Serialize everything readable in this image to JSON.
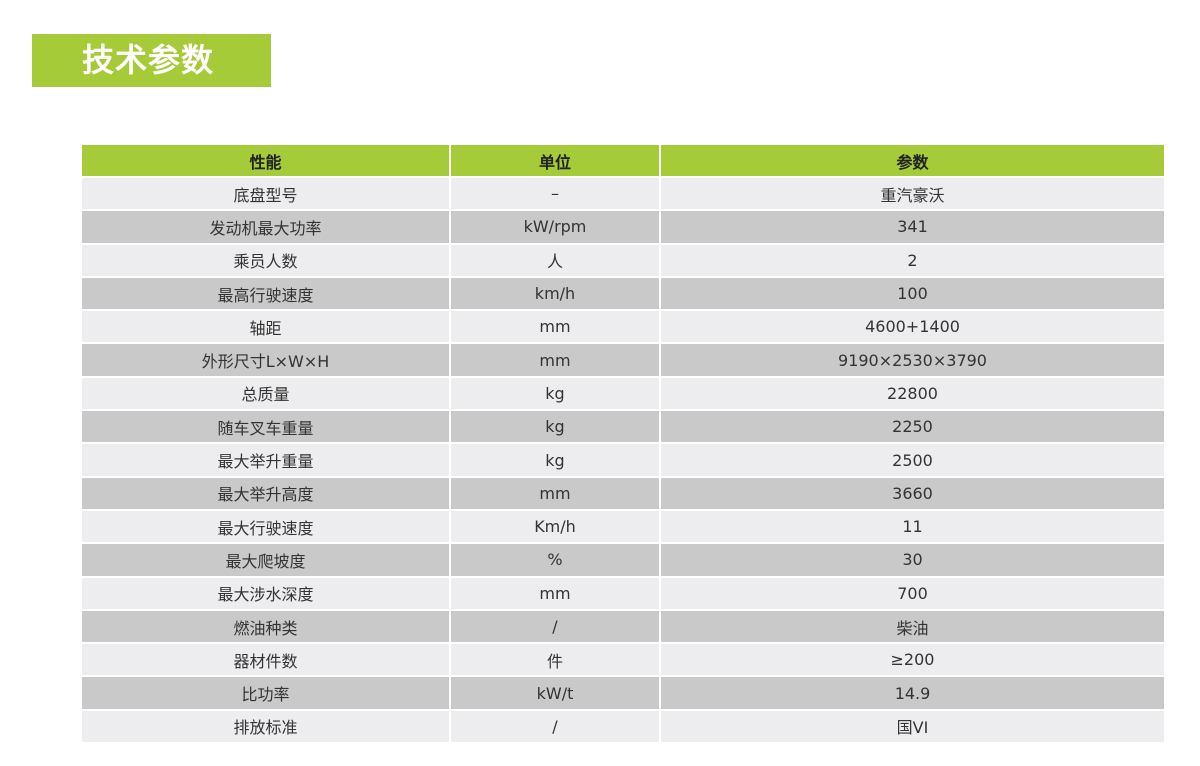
{
  "title": "技术参数",
  "colors": {
    "accent": "#a6cb38",
    "row_light": "#ededef",
    "row_dark": "#c9c9ca"
  },
  "table": {
    "headers": [
      "性能",
      "单位",
      "参数"
    ],
    "rows": [
      [
        "底盘型号",
        "–",
        "重汽豪沃"
      ],
      [
        "发动机最大功率",
        "kW/rpm",
        "341"
      ],
      [
        "乘员人数",
        "人",
        "2"
      ],
      [
        "最高行驶速度",
        "km/h",
        "100"
      ],
      [
        "轴距",
        "mm",
        "4600+1400"
      ],
      [
        "外形尺寸L×W×H",
        "mm",
        "9190×2530×3790"
      ],
      [
        "总质量",
        "kg",
        "22800"
      ],
      [
        "随车叉车重量",
        "kg",
        "2250"
      ],
      [
        "最大举升重量",
        "kg",
        "2500"
      ],
      [
        "最大举升高度",
        "mm",
        "3660"
      ],
      [
        "最大行驶速度",
        "Km/h",
        "11"
      ],
      [
        "最大爬坡度",
        "%",
        "30"
      ],
      [
        "最大涉水深度",
        "mm",
        "700"
      ],
      [
        "燃油种类",
        "/",
        "柴油"
      ],
      [
        "器材件数",
        "件",
        "≥200"
      ],
      [
        "比功率",
        "kW/t",
        "14.9"
      ],
      [
        "排放标准",
        "/",
        "国VI"
      ]
    ]
  }
}
